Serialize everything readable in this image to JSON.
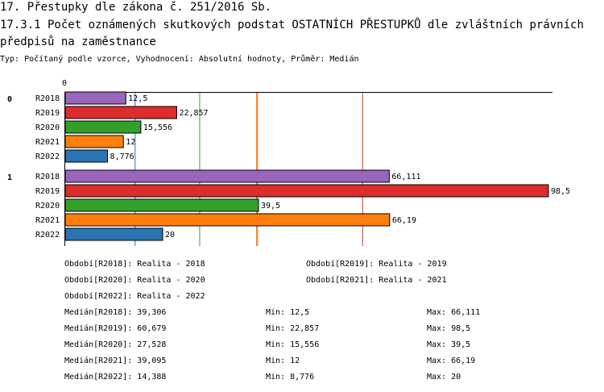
{
  "title": "17. Přestupky dle zákona č. 251/2016 Sb.",
  "subtitle": "17.3.1 Počet oznámených skutkových podstat OSTATNÍCH PŘESTUPKŮ dle zvláštních právních předpisů na zaměstnance",
  "type_line": "Typ: Počítaný podle vzorce, Vyhodnocení: Absolutní hodnoty, Průměr: Medián",
  "chart_data": {
    "type": "bar",
    "orientation": "horizontal",
    "axis_start_label": "0",
    "xlim": [
      0,
      98.5
    ],
    "groups": [
      {
        "label": "0",
        "bars": [
          {
            "series": "R2018",
            "value": 12.5,
            "label": "12,5",
            "color": "#9966bb"
          },
          {
            "series": "R2019",
            "value": 22.857,
            "label": "22,857",
            "color": "#dd2c2c"
          },
          {
            "series": "R2020",
            "value": 15.556,
            "label": "15,556",
            "color": "#33a02c"
          },
          {
            "series": "R2021",
            "value": 12,
            "label": "12",
            "color": "#ff7f0e"
          },
          {
            "series": "R2022",
            "value": 8.776,
            "label": "8,776",
            "color": "#2a75b3"
          }
        ]
      },
      {
        "label": "1",
        "bars": [
          {
            "series": "R2018",
            "value": 66.111,
            "label": "66,111",
            "color": "#9966bb"
          },
          {
            "series": "R2019",
            "value": 98.5,
            "label": "98,5",
            "color": "#dd2c2c"
          },
          {
            "series": "R2020",
            "value": 39.5,
            "label": "39,5",
            "color": "#33a02c"
          },
          {
            "series": "R2021",
            "value": 66.19,
            "label": "66,19",
            "color": "#ff7f0e"
          },
          {
            "series": "R2022",
            "value": 20,
            "label": "20",
            "color": "#2a75b3"
          }
        ]
      }
    ],
    "median_lines": [
      {
        "series": "R2018",
        "value": 39.306,
        "color": "#9966bb"
      },
      {
        "series": "R2019",
        "value": 60.679,
        "color": "#c0392b"
      },
      {
        "series": "R2020",
        "value": 27.528,
        "color": "#33a02c"
      },
      {
        "series": "R2021",
        "value": 39.095,
        "color": "#ff7f0e"
      },
      {
        "series": "R2022",
        "value": 14.388,
        "color": "#2a75b3"
      }
    ]
  },
  "legend": {
    "periods": [
      "Období[R2018]: Realita - 2018",
      "Období[R2019]: Realita - 2019",
      "Období[R2020]: Realita - 2020",
      "Období[R2021]: Realita - 2021",
      "Období[R2022]: Realita - 2022"
    ],
    "stats": [
      {
        "median": "Medián[R2018]: 39,306",
        "min": "Min: 12,5",
        "max": "Max: 66,111"
      },
      {
        "median": "Medián[R2019]: 60,679",
        "min": "Min: 22,857",
        "max": "Max: 98,5"
      },
      {
        "median": "Medián[R2020]: 27,528",
        "min": "Min: 15,556",
        "max": "Max: 39,5"
      },
      {
        "median": "Medián[R2021]: 39,095",
        "min": "Min: 12",
        "max": "Max: 66,19"
      },
      {
        "median": "Medián[R2022]: 14,388",
        "min": "Min: 8,776",
        "max": "Max: 20"
      }
    ]
  }
}
